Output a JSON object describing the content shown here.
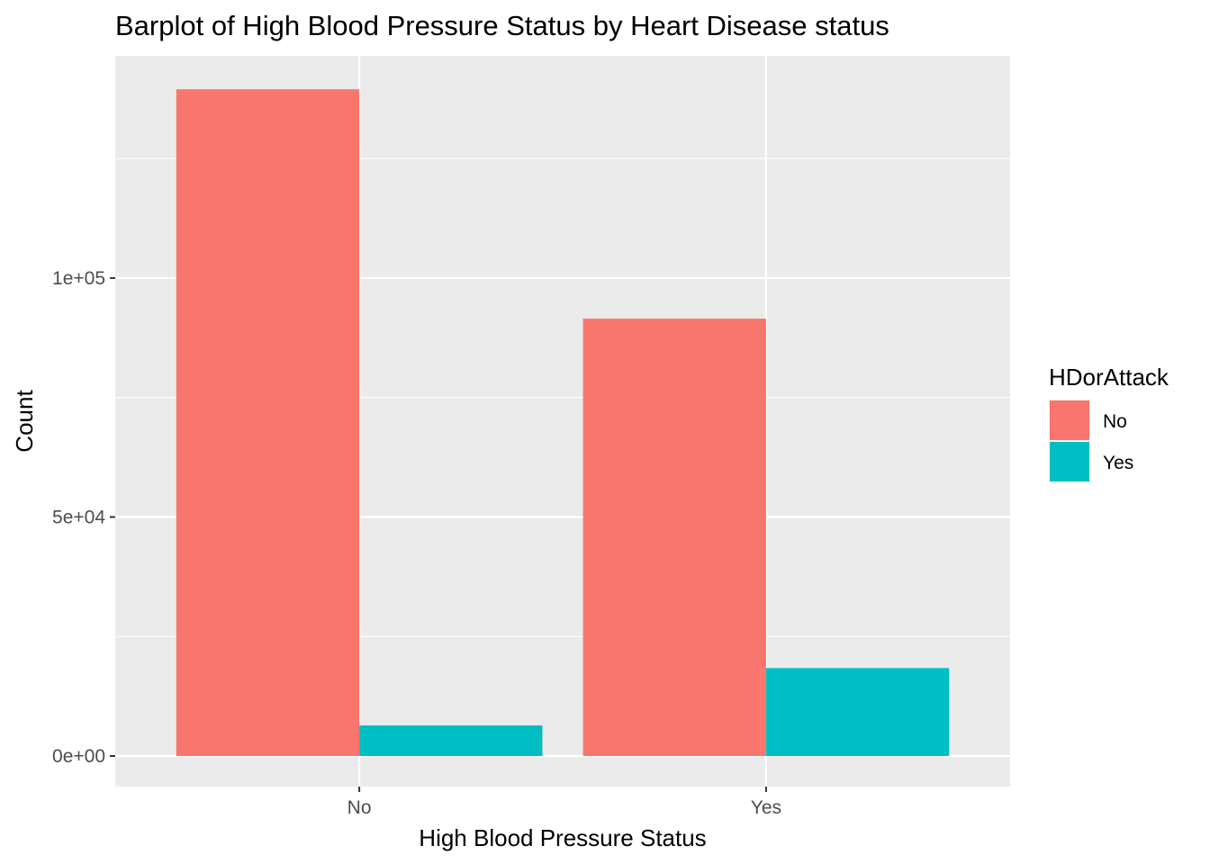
{
  "chart_data": {
    "type": "bar",
    "title": "Barplot of High Blood Pressure Status by Heart Disease status",
    "xlabel": "High Blood Pressure Status",
    "ylabel": "Count",
    "categories": [
      "No",
      "Yes"
    ],
    "series": [
      {
        "name": "No",
        "values": [
          139500,
          91500
        ],
        "color": "#F8766D"
      },
      {
        "name": "Yes",
        "values": [
          6400,
          18400
        ],
        "color": "#00BFC4"
      }
    ],
    "ylim": [
      -6400,
      146500
    ],
    "yticks": [
      0,
      50000,
      100000
    ],
    "ytick_labels": [
      "0e+00",
      "5e+04",
      "1e+05"
    ],
    "grid": true,
    "panel_background": "#EBEBEB",
    "legend": {
      "title": "HDorAttack",
      "position": "right",
      "entries": [
        "No",
        "Yes"
      ]
    }
  }
}
